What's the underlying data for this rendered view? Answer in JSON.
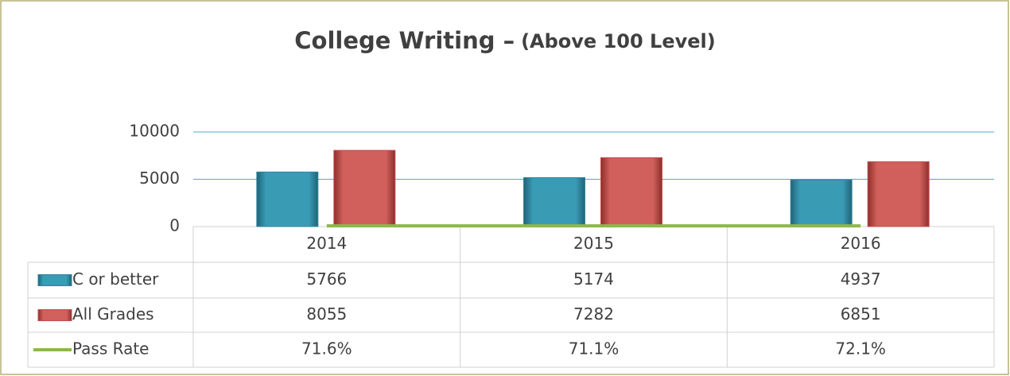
{
  "chart_data": {
    "type": "bar",
    "title": "College Writing –",
    "subtitle": "(Above 100 Level)",
    "categories": [
      "2014",
      "2015",
      "2016"
    ],
    "series": [
      {
        "name": "C or better",
        "color": "#31859c",
        "values": [
          5766,
          5174,
          4937
        ]
      },
      {
        "name": "All Grades",
        "color": "#c0504d",
        "values": [
          8055,
          7282,
          6851
        ]
      },
      {
        "name": "Pass Rate",
        "color": "#8db84a",
        "type": "line",
        "values": [
          71.6,
          71.1,
          72.1
        ],
        "value_labels": [
          "71.6%",
          "71.1%",
          "72.1%"
        ]
      }
    ],
    "ylim": [
      0,
      10000
    ],
    "yticks": [
      0,
      5000,
      10000
    ],
    "grid": true,
    "data_table": true
  }
}
